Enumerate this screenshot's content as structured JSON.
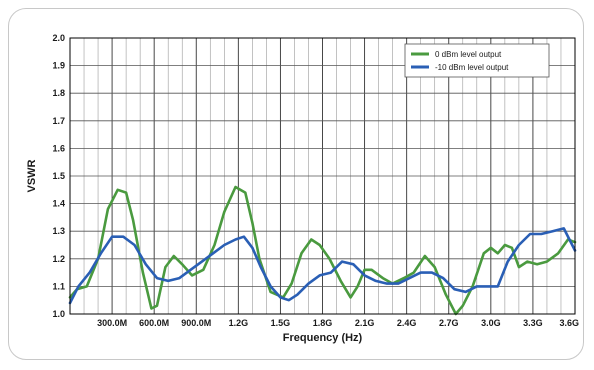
{
  "chart_data": {
    "type": "line",
    "xlabel": "Frequency (Hz)",
    "ylabel": "VSWR",
    "xlim": [
      0,
      3600
    ],
    "ylim": [
      1.0,
      2.0
    ],
    "x_ticks": [
      {
        "value": 300,
        "label": "300.0M"
      },
      {
        "value": 600,
        "label": "600.0M"
      },
      {
        "value": 900,
        "label": "900.0M"
      },
      {
        "value": 1200,
        "label": "1.2G"
      },
      {
        "value": 1500,
        "label": "1.5G"
      },
      {
        "value": 1800,
        "label": "1.8G"
      },
      {
        "value": 2100,
        "label": "2.1G"
      },
      {
        "value": 2400,
        "label": "2.4G"
      },
      {
        "value": 2700,
        "label": "2.7G"
      },
      {
        "value": 3000,
        "label": "3.0G"
      },
      {
        "value": 3300,
        "label": "3.3G"
      },
      {
        "value": 3600,
        "label": "3.6G"
      }
    ],
    "y_ticks": [
      "1.0",
      "1.1",
      "1.2",
      "1.3",
      "1.4",
      "1.5",
      "1.6",
      "1.7",
      "1.8",
      "1.9",
      "2.0"
    ],
    "grid": true,
    "legend_position": "top-right",
    "series": [
      {
        "name": "0 dBm level output",
        "color": "#4a9a3f",
        "x": [
          0,
          50,
          120,
          200,
          270,
          340,
          400,
          450,
          520,
          580,
          620,
          680,
          740,
          800,
          870,
          950,
          1030,
          1100,
          1180,
          1250,
          1300,
          1350,
          1430,
          1520,
          1580,
          1650,
          1720,
          1780,
          1850,
          1930,
          2000,
          2050,
          2100,
          2150,
          2230,
          2300,
          2380,
          2450,
          2530,
          2600,
          2680,
          2750,
          2800,
          2870,
          2950,
          3000,
          3050,
          3100,
          3150,
          3200,
          3260,
          3330,
          3400,
          3480,
          3550,
          3600
        ],
        "y": [
          1.06,
          1.09,
          1.1,
          1.2,
          1.38,
          1.45,
          1.44,
          1.34,
          1.15,
          1.02,
          1.03,
          1.17,
          1.21,
          1.18,
          1.14,
          1.16,
          1.25,
          1.37,
          1.46,
          1.44,
          1.33,
          1.2,
          1.08,
          1.06,
          1.11,
          1.22,
          1.27,
          1.25,
          1.2,
          1.12,
          1.06,
          1.1,
          1.16,
          1.16,
          1.13,
          1.11,
          1.13,
          1.15,
          1.21,
          1.17,
          1.07,
          1.0,
          1.03,
          1.1,
          1.22,
          1.24,
          1.22,
          1.25,
          1.24,
          1.17,
          1.19,
          1.18,
          1.19,
          1.22,
          1.27,
          1.26
        ]
      },
      {
        "name": "-10 dBm level output",
        "color": "#2a5fb5",
        "x": [
          0,
          60,
          140,
          220,
          300,
          380,
          460,
          540,
          620,
          700,
          780,
          860,
          940,
          1020,
          1100,
          1180,
          1240,
          1300,
          1360,
          1430,
          1500,
          1560,
          1620,
          1700,
          1780,
          1860,
          1940,
          2020,
          2100,
          2180,
          2260,
          2340,
          2420,
          2500,
          2580,
          2660,
          2740,
          2820,
          2900,
          2980,
          3050,
          3120,
          3200,
          3280,
          3360,
          3440,
          3520,
          3600
        ],
        "y": [
          1.04,
          1.1,
          1.15,
          1.22,
          1.28,
          1.28,
          1.25,
          1.18,
          1.13,
          1.12,
          1.13,
          1.16,
          1.19,
          1.22,
          1.25,
          1.27,
          1.28,
          1.24,
          1.17,
          1.1,
          1.06,
          1.05,
          1.07,
          1.11,
          1.14,
          1.15,
          1.19,
          1.18,
          1.14,
          1.12,
          1.11,
          1.11,
          1.13,
          1.15,
          1.15,
          1.13,
          1.09,
          1.08,
          1.1,
          1.1,
          1.1,
          1.19,
          1.25,
          1.29,
          1.29,
          1.3,
          1.31,
          1.23
        ]
      }
    ]
  }
}
